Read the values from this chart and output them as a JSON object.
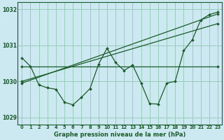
{
  "title": "Graphe pression niveau de la mer (hPa)",
  "background_color": "#cce8f0",
  "grid_color": "#99ccbb",
  "line_color": "#1a5c2a",
  "xlim": [
    -0.5,
    23.5
  ],
  "ylim": [
    1028.8,
    1032.2
  ],
  "yticks": [
    1029,
    1030,
    1031,
    1032
  ],
  "xtick_labels": [
    "0",
    "1",
    "2",
    "3",
    "4",
    "5",
    "6",
    "7",
    "8",
    "9",
    "10",
    "11",
    "12",
    "13",
    "14",
    "15",
    "16",
    "17",
    "18",
    "19",
    "20",
    "21",
    "22",
    "23"
  ],
  "series1_x": [
    0,
    1,
    2,
    3,
    4,
    5,
    6,
    7,
    8,
    9,
    10,
    11,
    12,
    13,
    14,
    15,
    16,
    17,
    18,
    19,
    20,
    21,
    22,
    23
  ],
  "series1_y": [
    1030.65,
    1030.42,
    1029.9,
    1029.82,
    1029.78,
    1029.42,
    1029.35,
    1029.56,
    1029.8,
    1030.47,
    1030.92,
    1030.52,
    1030.3,
    1030.45,
    1029.95,
    1029.38,
    1029.37,
    1029.95,
    1030.0,
    1030.85,
    1031.15,
    1031.7,
    1031.85,
    1031.92
  ],
  "series2_x": [
    0,
    23
  ],
  "series2_y": [
    1030.42,
    1030.42
  ],
  "series3_x": [
    0,
    23
  ],
  "series3_y": [
    1030.0,
    1031.6
  ],
  "series4_x": [
    0,
    23
  ],
  "series4_y": [
    1029.95,
    1031.87
  ]
}
